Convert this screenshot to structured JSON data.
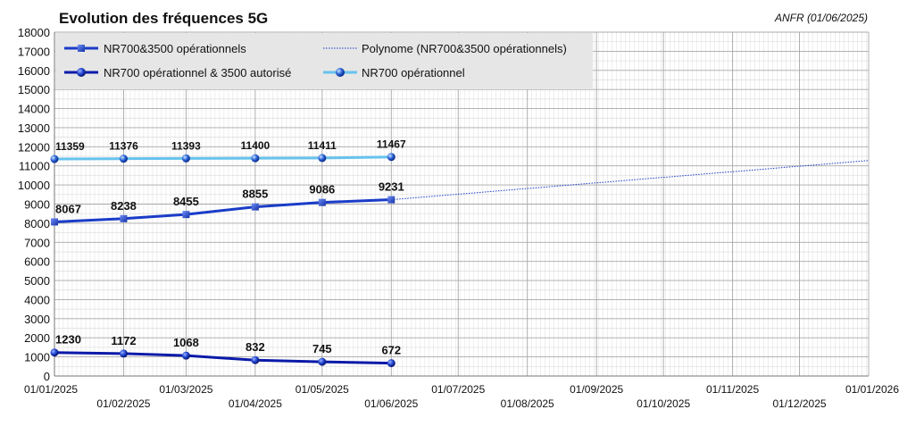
{
  "chart_data": {
    "type": "line",
    "title": "Evolution des fréquences 5G",
    "source": "ANFR (01/06/2025)",
    "xlabel": "",
    "ylabel": "",
    "ylim": [
      0,
      18000
    ],
    "yticks": [
      0,
      1000,
      2000,
      3000,
      4000,
      5000,
      6000,
      7000,
      8000,
      9000,
      10000,
      11000,
      12000,
      13000,
      14000,
      15000,
      16000,
      17000,
      18000
    ],
    "xlim": [
      "2025-01-01",
      "2026-01-01"
    ],
    "xticks": [
      "01/01/2025",
      "01/02/2025",
      "01/03/2025",
      "01/04/2025",
      "01/05/2025",
      "01/06/2025",
      "01/07/2025",
      "01/08/2025",
      "01/09/2025",
      "01/10/2025",
      "01/11/2025",
      "01/12/2025",
      "01/01/2026"
    ],
    "grid": true,
    "legend_position": "top-left",
    "x": [
      "2025-01-01",
      "2025-02-01",
      "2025-03-01",
      "2025-04-01",
      "2025-05-01",
      "2025-06-01"
    ],
    "series": [
      {
        "name": "NR700&3500 opérationnels",
        "values": [
          8067,
          8238,
          8455,
          8855,
          9086,
          9231
        ],
        "color": "#1a3cc8",
        "marker": "square"
      },
      {
        "name": "NR700 opérationnel & 3500 autorisé",
        "values": [
          1230,
          1172,
          1068,
          832,
          745,
          672
        ],
        "color": "#0a1aa8",
        "marker": "sphere"
      },
      {
        "name": "NR700 opérationnel",
        "values": [
          11359,
          11376,
          11393,
          11400,
          11411,
          11467
        ],
        "color": "#66c3ee",
        "marker": "sphere"
      }
    ],
    "trendline": {
      "name": "Polynome (NR700&3500 opérationnels)",
      "color": "#1a3cc8",
      "style": "dotted",
      "end_value": 11280
    }
  }
}
